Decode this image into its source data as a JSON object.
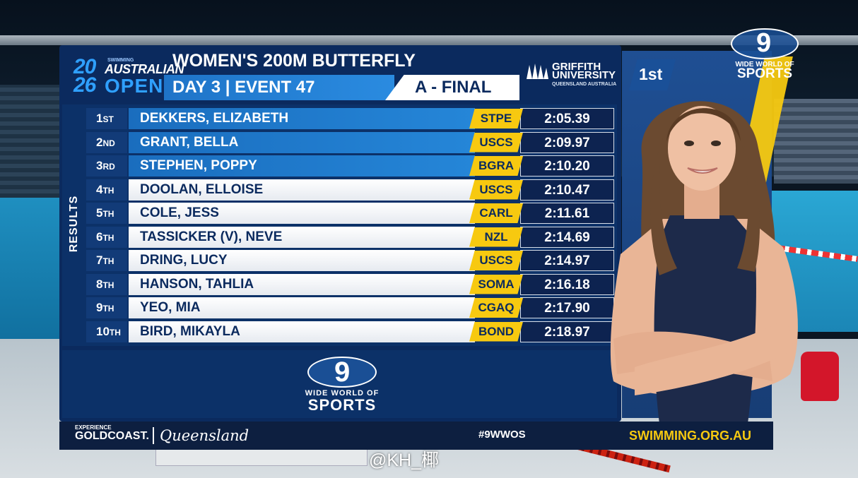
{
  "logo": {
    "small_text": "SWIMMING",
    "year_top": "20",
    "year_bottom": "26",
    "line1": "AUSTRALIAN",
    "line2": "OPEN"
  },
  "header": {
    "event_title": "WOMEN'S 200M BUTTERFLY",
    "day_event": "DAY 3 | EVENT 47",
    "final_label": "A - FINAL"
  },
  "sponsor": {
    "line1": "GRIFFITH",
    "line2": "UNIVERSITY",
    "line3": "QUEENSLAND AUSTRALIA"
  },
  "results_label": "RESULTS",
  "results": [
    {
      "pos": "1",
      "suffix": "ST",
      "name": "DEKKERS, ELIZABETH",
      "club": "STPE",
      "time": "2:05.39"
    },
    {
      "pos": "2",
      "suffix": "ND",
      "name": "GRANT, BELLA",
      "club": "USCS",
      "time": "2:09.97"
    },
    {
      "pos": "3",
      "suffix": "RD",
      "name": "STEPHEN, POPPY",
      "club": "BGRA",
      "time": "2:10.20"
    },
    {
      "pos": "4",
      "suffix": "TH",
      "name": "DOOLAN, ELLOISE",
      "club": "USCS",
      "time": "2:10.47"
    },
    {
      "pos": "5",
      "suffix": "TH",
      "name": "COLE, JESS",
      "club": "CARL",
      "time": "2:11.61"
    },
    {
      "pos": "6",
      "suffix": "TH",
      "name": "TASSICKER (V), NEVE",
      "club": "NZL",
      "time": "2:14.69"
    },
    {
      "pos": "7",
      "suffix": "TH",
      "name": "DRING, LUCY",
      "club": "USCS",
      "time": "2:14.97"
    },
    {
      "pos": "8",
      "suffix": "TH",
      "name": "HANSON, TAHLIA",
      "club": "SOMA",
      "time": "2:16.18"
    },
    {
      "pos": "9",
      "suffix": "TH",
      "name": "YEO, MIA",
      "club": "CGAQ",
      "time": "2:17.90"
    },
    {
      "pos": "10",
      "suffix": "TH",
      "name": "BIRD, MIKAYLA",
      "club": "BOND",
      "time": "2:18.97"
    }
  ],
  "broadcaster": {
    "nine": "9",
    "line1": "WIDE WORLD OF",
    "line2": "SPORTS"
  },
  "athlete_card": {
    "badge": "1st"
  },
  "footer": {
    "experience": "EXPERIENCE",
    "goldcoast": "GOLDCOAST.",
    "queensland": "Queensland",
    "hashtag": "#9WWOS",
    "website": "SWIMMING.ORG.AU"
  },
  "watermark": "@KH_椰",
  "colors": {
    "navy": "#0b2a5e",
    "blue": "#1f74c8",
    "gold": "#f7c910",
    "white": "#ffffff"
  }
}
